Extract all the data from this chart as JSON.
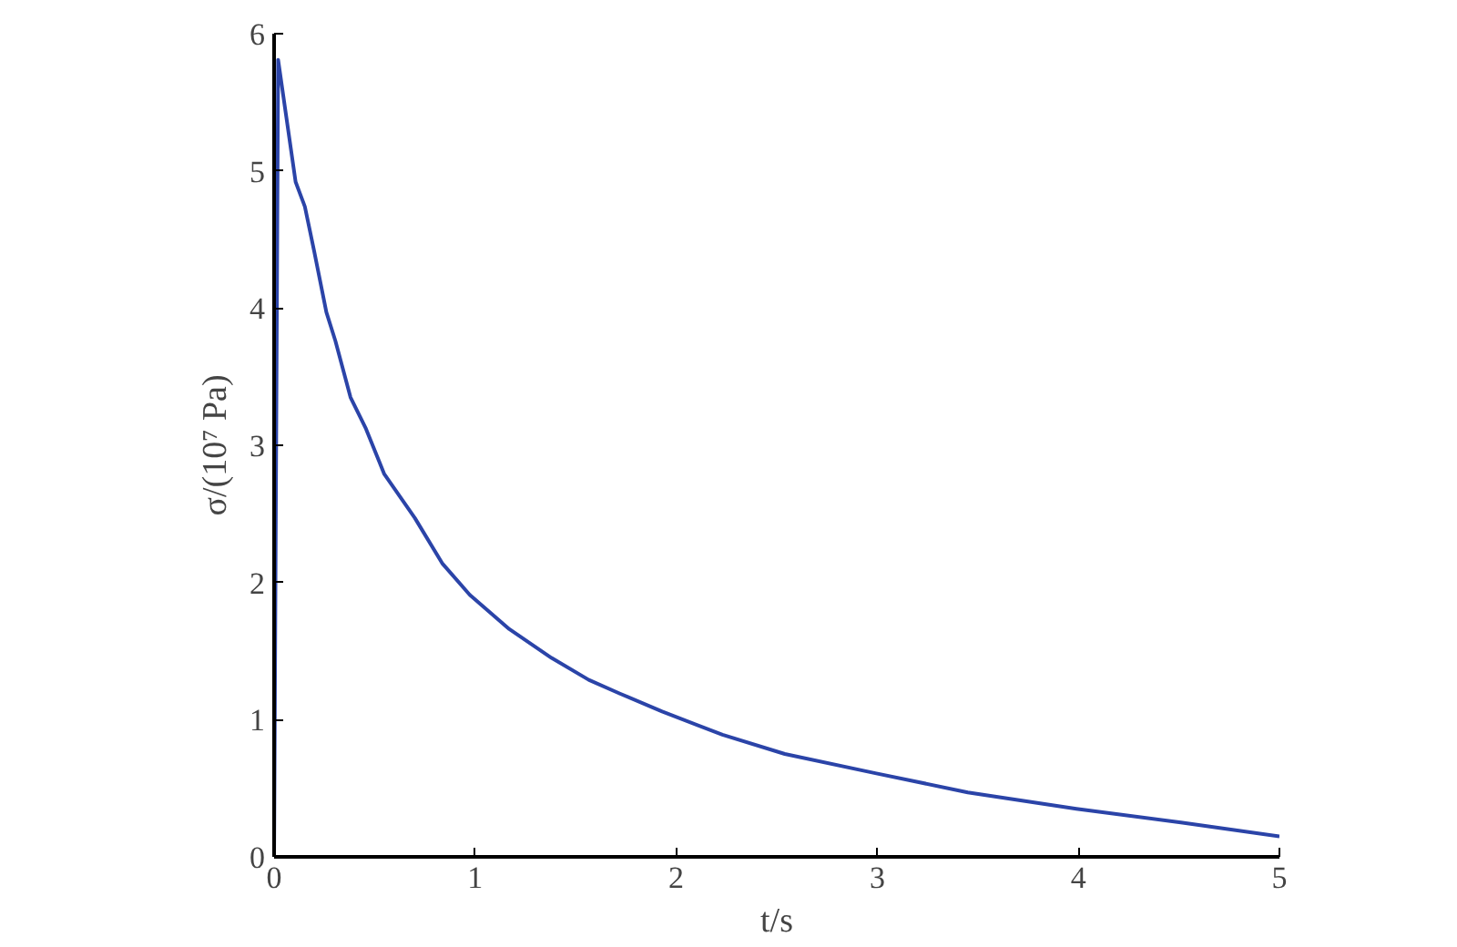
{
  "chart_data": {
    "type": "line",
    "xlabel": "t/s",
    "ylabel": "σ/(10⁷ Pa)",
    "series": [
      {
        "color": "#2b44a8",
        "x": [
          0,
          0.02,
          0.107,
          0.153,
          0.2,
          0.26,
          0.305,
          0.38,
          0.457,
          0.548,
          0.7,
          0.836,
          0.973,
          1.17,
          1.38,
          1.565,
          1.72,
          1.93,
          2.23,
          2.54,
          2.99,
          3.45,
          3.99,
          4.51,
          5.0
        ],
        "values": [
          0,
          5.81,
          4.92,
          4.74,
          4.41,
          3.97,
          3.76,
          3.35,
          3.12,
          2.79,
          2.47,
          2.14,
          1.91,
          1.66,
          1.45,
          1.29,
          1.19,
          1.06,
          0.89,
          0.75,
          0.61,
          0.47,
          0.35,
          0.25,
          0.15
        ]
      }
    ],
    "xlim": [
      0,
      5
    ],
    "ylim": [
      0,
      6
    ],
    "xticks": [
      0,
      1,
      2,
      3,
      4,
      5
    ],
    "yticks": [
      0,
      1,
      2,
      3,
      4,
      5,
      6
    ],
    "grid": false,
    "marker": "none",
    "line_style": "solid"
  }
}
